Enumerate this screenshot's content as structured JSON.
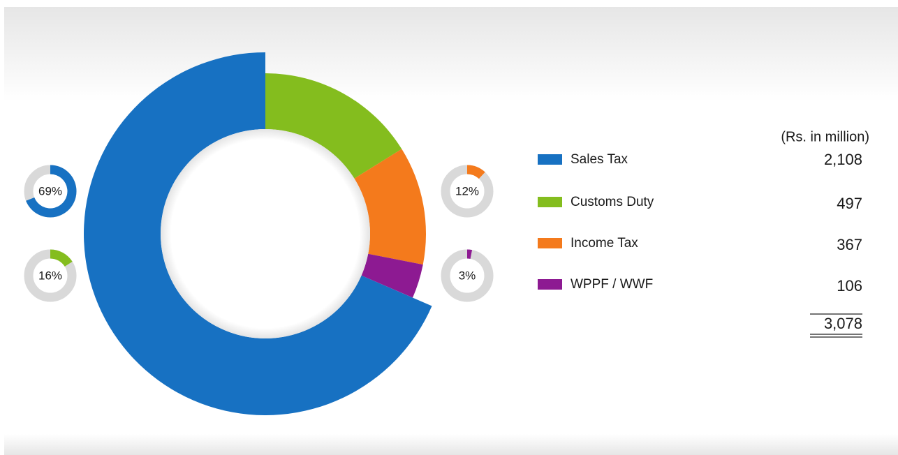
{
  "chart_data": {
    "type": "donut",
    "unit_label": "(Rs. in million)",
    "categories": [
      "Sales Tax",
      "Customs Duty",
      "Income Tax",
      "WPPF / WWF"
    ],
    "values": [
      2108,
      497,
      367,
      106
    ],
    "value_labels": [
      "2,108",
      "497",
      "367",
      "106"
    ],
    "colors": [
      "#1771c2",
      "#84bd1e",
      "#f47a1c",
      "#8d1a92"
    ],
    "percentages": [
      69,
      16,
      12,
      3
    ],
    "percentage_labels": [
      "69%",
      "16%",
      "12%",
      "3%"
    ],
    "total": "3,078"
  }
}
